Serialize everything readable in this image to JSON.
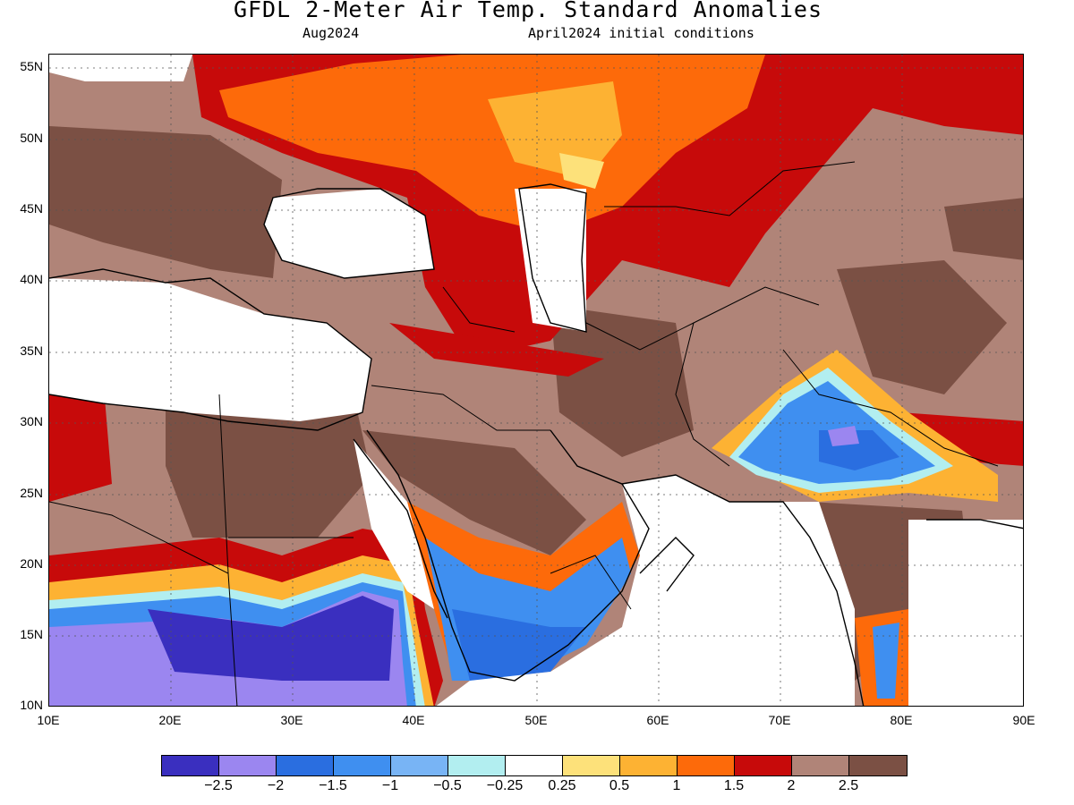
{
  "title": "GFDL 2-Meter Air Temp. Standard Anomalies",
  "subtitle_left": "Aug2024",
  "subtitle_right": "April2024 initial conditions",
  "axes": {
    "lon_labels": [
      "10E",
      "20E",
      "30E",
      "40E",
      "50E",
      "60E",
      "70E",
      "80E",
      "90E"
    ],
    "lat_labels": [
      "55N",
      "50N",
      "45N",
      "40N",
      "35N",
      "30N",
      "25N",
      "20N",
      "15N",
      "10N"
    ],
    "lon_range": [
      10,
      90
    ],
    "lat_range": [
      10,
      56
    ],
    "grid": "dotted"
  },
  "colorbar": {
    "labels": [
      "-2.5",
      "-2",
      "-1.5",
      "-1",
      "-0.5",
      "-0.25",
      "0.25",
      "0.5",
      "1",
      "1.5",
      "2",
      "2.5"
    ],
    "colors": [
      "#3a2fbf",
      "#9b86f0",
      "#2a6ee0",
      "#3f8ff0",
      "#78b4f5",
      "#b2eef0",
      "#ffffff",
      "#fde17a",
      "#fdb233",
      "#fd6a0a",
      "#c70a0a",
      "#b08478",
      "#7b5044"
    ]
  }
}
